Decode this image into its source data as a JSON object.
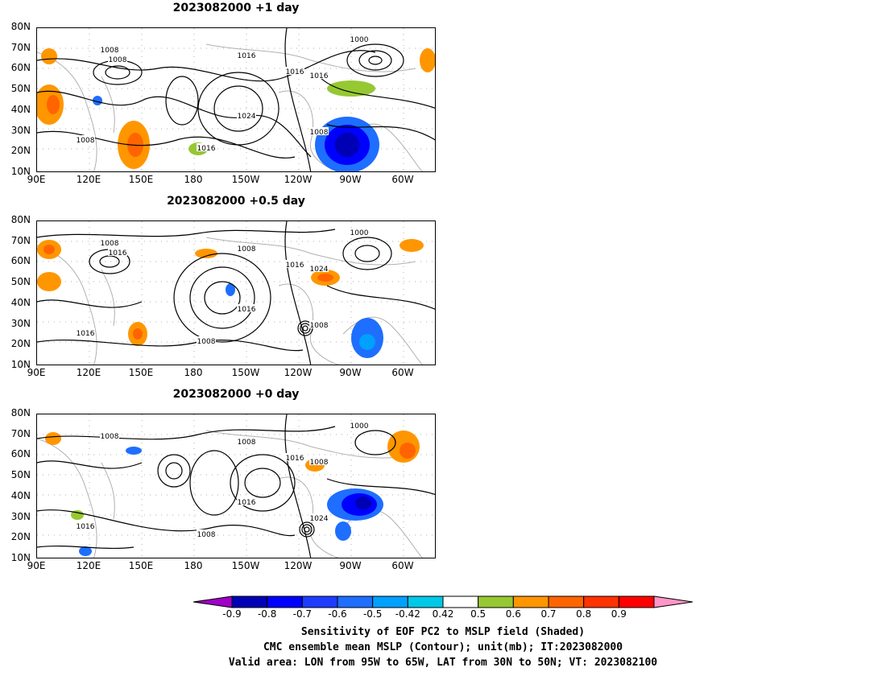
{
  "panels": [
    {
      "title": "2023082000  +1 day",
      "contour_labels": [
        "1008",
        "1016",
        "1016",
        "1008",
        "1000",
        "1016",
        "1024",
        "1008",
        "1016",
        "1008"
      ]
    },
    {
      "title": "2023082000  +0.5 day",
      "contour_labels": [
        "1008",
        "1008",
        "1016",
        "1008",
        "1000",
        "1024",
        "1016",
        "1016",
        "1008",
        "1016"
      ]
    },
    {
      "title": "2023082000  +0 day",
      "contour_labels": [
        "1008",
        "1008",
        "1016",
        "1024",
        "1000",
        "1008",
        "1016",
        "1016",
        "1008"
      ]
    }
  ],
  "axes": {
    "lat_labels": [
      "80N",
      "70N",
      "60N",
      "50N",
      "40N",
      "30N",
      "20N",
      "10N"
    ],
    "lon_labels": [
      "90E",
      "120E",
      "150E",
      "180",
      "150W",
      "120W",
      "90W",
      "60W"
    ]
  },
  "colorbar": {
    "ticks": [
      "-0.9",
      "-0.8",
      "-0.7",
      "-0.6",
      "-0.5",
      "-0.42",
      "0.42",
      "0.5",
      "0.6",
      "0.7",
      "0.8",
      "0.9"
    ],
    "colors": [
      "#a000c8",
      "#0000b4",
      "#0000ff",
      "#1e3cff",
      "#1e6eff",
      "#00a0ff",
      "#00c8e6",
      "#ffffff",
      "#96c832",
      "#ff9600",
      "#ff6400",
      "#ff3200",
      "#ff0000",
      "#ff96c8"
    ]
  },
  "caption": {
    "line1": "Sensitivity of EOF PC2 to MSLP field (Shaded)",
    "line2": "CMC ensemble mean MSLP (Contour); unit(mb); IT:2023082000",
    "line3": "Valid area: LON from 95W to 65W, LAT from 30N to 50N; VT: 2023082100"
  }
}
